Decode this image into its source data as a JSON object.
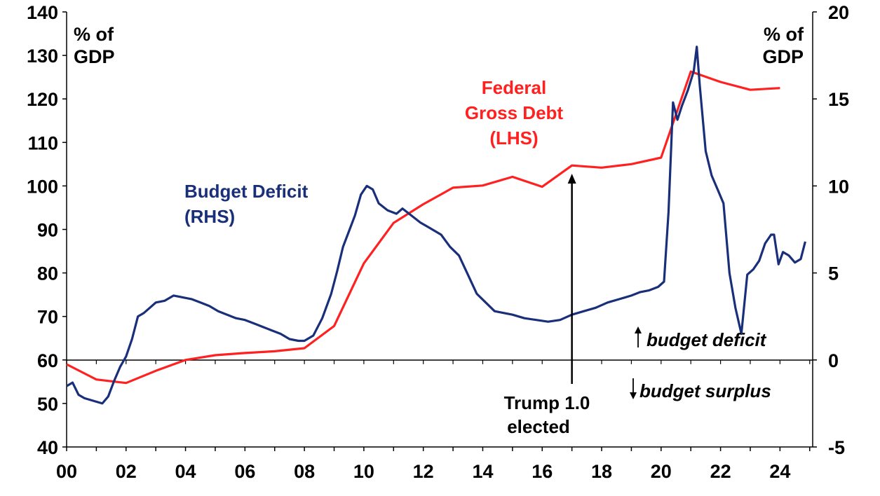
{
  "chart_data": {
    "type": "line",
    "x_ticks": [
      "00",
      "02",
      "04",
      "06",
      "08",
      "10",
      "12",
      "14",
      "16",
      "18",
      "20",
      "22",
      "24"
    ],
    "xlim": [
      2000,
      2025.1
    ],
    "left_axis": {
      "unit_line1": "% of",
      "unit_line2": "GDP",
      "ylim": [
        40,
        140
      ],
      "ticks": [
        40,
        50,
        60,
        70,
        80,
        90,
        100,
        110,
        120,
        130,
        140
      ]
    },
    "right_axis": {
      "unit_line1": "% of",
      "unit_line2": "GDP",
      "ylim": [
        -5,
        20
      ],
      "ticks": [
        -5,
        0,
        5,
        10,
        15,
        20
      ]
    },
    "series": [
      {
        "name": "Federal Gross Debt (LHS)",
        "label_lines": [
          "Federal",
          "Gross Debt",
          "(LHS)"
        ],
        "axis": "left",
        "color": "#ff2020",
        "x": [
          2000,
          2001,
          2002,
          2003,
          2004,
          2005,
          2006,
          2007,
          2008,
          2009,
          2010,
          2011,
          2012,
          2013,
          2014,
          2015,
          2016,
          2017,
          2018,
          2019,
          2020,
          2021,
          2022,
          2023,
          2024
        ],
        "y": [
          59.0,
          55.5,
          54.7,
          57.5,
          60.0,
          61.1,
          61.6,
          62.0,
          62.7,
          67.8,
          82.2,
          91.5,
          95.8,
          99.6,
          100.1,
          102.1,
          99.8,
          104.7,
          104.2,
          105.0,
          106.5,
          126.3,
          123.9,
          122.1,
          122.5
        ]
      },
      {
        "name": "Budget Deficit (RHS)",
        "label_lines": [
          "Budget Deficit",
          "(RHS)"
        ],
        "axis": "right",
        "color": "#1a2f7a",
        "x": [
          2000.0,
          2000.2,
          2000.4,
          2000.6,
          2000.8,
          2001.0,
          2001.2,
          2001.4,
          2001.6,
          2001.8,
          2002.0,
          2002.2,
          2002.4,
          2002.6,
          2002.8,
          2003.0,
          2003.3,
          2003.6,
          2003.9,
          2004.2,
          2004.5,
          2004.8,
          2005.1,
          2005.4,
          2005.7,
          2006.0,
          2006.3,
          2006.6,
          2006.9,
          2007.2,
          2007.5,
          2007.8,
          2008.0,
          2008.3,
          2008.6,
          2008.9,
          2009.1,
          2009.3,
          2009.5,
          2009.7,
          2009.9,
          2010.1,
          2010.3,
          2010.5,
          2010.8,
          2011.1,
          2011.3,
          2011.6,
          2011.9,
          2012.2,
          2012.6,
          2012.9,
          2013.2,
          2013.5,
          2013.8,
          2014.1,
          2014.4,
          2014.7,
          2015.0,
          2015.4,
          2015.8,
          2016.2,
          2016.6,
          2017.0,
          2017.4,
          2017.8,
          2018.2,
          2018.6,
          2019.0,
          2019.3,
          2019.6,
          2019.9,
          2020.1,
          2020.25,
          2020.4,
          2020.55,
          2020.7,
          2020.9,
          2021.1,
          2021.2,
          2021.3,
          2021.5,
          2021.7,
          2021.9,
          2022.1,
          2022.3,
          2022.5,
          2022.7,
          2022.9,
          2023.1,
          2023.3,
          2023.5,
          2023.7,
          2023.8,
          2023.95,
          2024.1,
          2024.3,
          2024.5,
          2024.7,
          2024.85
        ],
        "y": [
          -1.5,
          -1.3,
          -2.0,
          -2.2,
          -2.3,
          -2.4,
          -2.5,
          -2.1,
          -1.2,
          -0.4,
          0.2,
          1.2,
          2.5,
          2.7,
          3.0,
          3.3,
          3.4,
          3.7,
          3.6,
          3.5,
          3.3,
          3.1,
          2.8,
          2.6,
          2.4,
          2.3,
          2.1,
          1.9,
          1.7,
          1.5,
          1.2,
          1.1,
          1.1,
          1.4,
          2.4,
          3.8,
          5.1,
          6.5,
          7.4,
          8.3,
          9.5,
          10.0,
          9.8,
          9.0,
          8.6,
          8.4,
          8.7,
          8.3,
          7.9,
          7.6,
          7.2,
          6.5,
          6.0,
          4.9,
          3.8,
          3.3,
          2.8,
          2.7,
          2.6,
          2.4,
          2.3,
          2.2,
          2.3,
          2.6,
          2.8,
          3.0,
          3.3,
          3.5,
          3.7,
          3.9,
          4.0,
          4.2,
          4.5,
          8.5,
          14.8,
          13.8,
          14.6,
          15.5,
          16.6,
          18.0,
          15.8,
          12.0,
          10.6,
          9.8,
          9.0,
          5.0,
          3.0,
          1.5,
          4.9,
          5.2,
          5.7,
          6.7,
          7.2,
          7.2,
          5.5,
          6.2,
          6.0,
          5.6,
          5.8,
          6.8
        ]
      }
    ],
    "annotations": {
      "event_line1": "Trump 1.0",
      "event_line2": "elected",
      "event_x": 2017.0,
      "deficit_label": "budget deficit",
      "surplus_label": "budget surplus"
    }
  }
}
